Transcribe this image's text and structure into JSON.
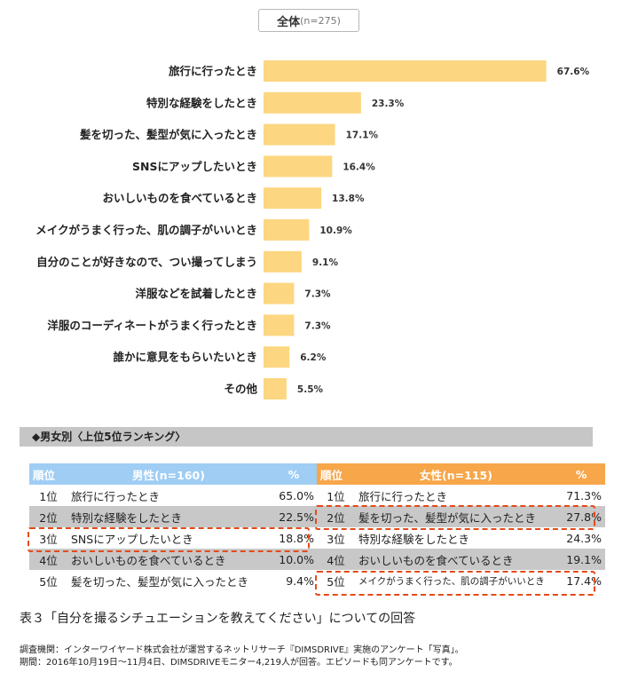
{
  "total_label": "全体",
  "total_n": "(n=275)",
  "chart_data": {
    "type": "bar",
    "orientation": "horizontal",
    "categories": [
      "旅行に行ったとき",
      "特別な経験をしたとき",
      "髪を切った、髪型が気に入ったとき",
      "SNSにアップしたいとき",
      "おいしいものを食べているとき",
      "メイクがうまく行った、肌の調子がいいとき",
      "自分のことが好きなので、つい撮ってしまう",
      "洋服などを試着したとき",
      "洋服のコーディネートがうまく行ったとき",
      "誰かに意見をもらいたいとき",
      "その他"
    ],
    "values": [
      67.6,
      23.3,
      17.1,
      16.4,
      13.8,
      10.9,
      9.1,
      7.3,
      7.3,
      6.2,
      5.5
    ],
    "value_labels": [
      "67.6%",
      "23.3%",
      "17.1%",
      "16.4%",
      "13.8%",
      "10.9%",
      "9.1%",
      "7.3%",
      "7.3%",
      "6.2%",
      "5.5%"
    ],
    "xlim": [
      0,
      70
    ],
    "grid": false,
    "bar_color": "#fdd681"
  },
  "ranking": {
    "header": "◆男女別〈上位5位ランキング〉",
    "male": {
      "col_rank": "順位",
      "col_title": "男性(n=160)",
      "col_pct": "%",
      "rows": [
        {
          "rank": "1位",
          "label": "旅行に行ったとき",
          "pct": "65.0%"
        },
        {
          "rank": "2位",
          "label": "特別な経験をしたとき",
          "pct": "22.5%"
        },
        {
          "rank": "3位",
          "label": "SNSにアップしたいとき",
          "pct": "18.8%"
        },
        {
          "rank": "4位",
          "label": "おいしいものを食べているとき",
          "pct": "10.0%"
        },
        {
          "rank": "5位",
          "label": "髪を切った、髪型が気に入ったとき",
          "pct": "9.4%"
        }
      ]
    },
    "female": {
      "col_rank": "順位",
      "col_title": "女性(n=115)",
      "col_pct": "%",
      "rows": [
        {
          "rank": "1位",
          "label": "旅行に行ったとき",
          "pct": "71.3%"
        },
        {
          "rank": "2位",
          "label": "髪を切った、髪型が気に入ったとき",
          "pct": "27.8%"
        },
        {
          "rank": "3位",
          "label": "特別な経験をしたとき",
          "pct": "24.3%"
        },
        {
          "rank": "4位",
          "label": "おいしいものを食べているとき",
          "pct": "19.1%"
        },
        {
          "rank": "5位",
          "label": "メイクがうまく行った、肌の調子がいいとき",
          "pct": "17.4%"
        }
      ]
    },
    "male_header_color": "#9fcdf4",
    "female_header_color": "#f7a64a",
    "highlight_color": "#e44a1a"
  },
  "caption": "表３「自分を撮るシチュエーションを教えてください」についての回答",
  "source_line1": "調査機関：インターワイヤード株式会社が運営するネットリサーチ『DIMSDRIVE』実施のアンケート「写真」。",
  "source_line2": "期間：2016年10月19日～11月4日、DIMSDRIVEモニター4,219人が回答。エピソードも同アンケートです。"
}
